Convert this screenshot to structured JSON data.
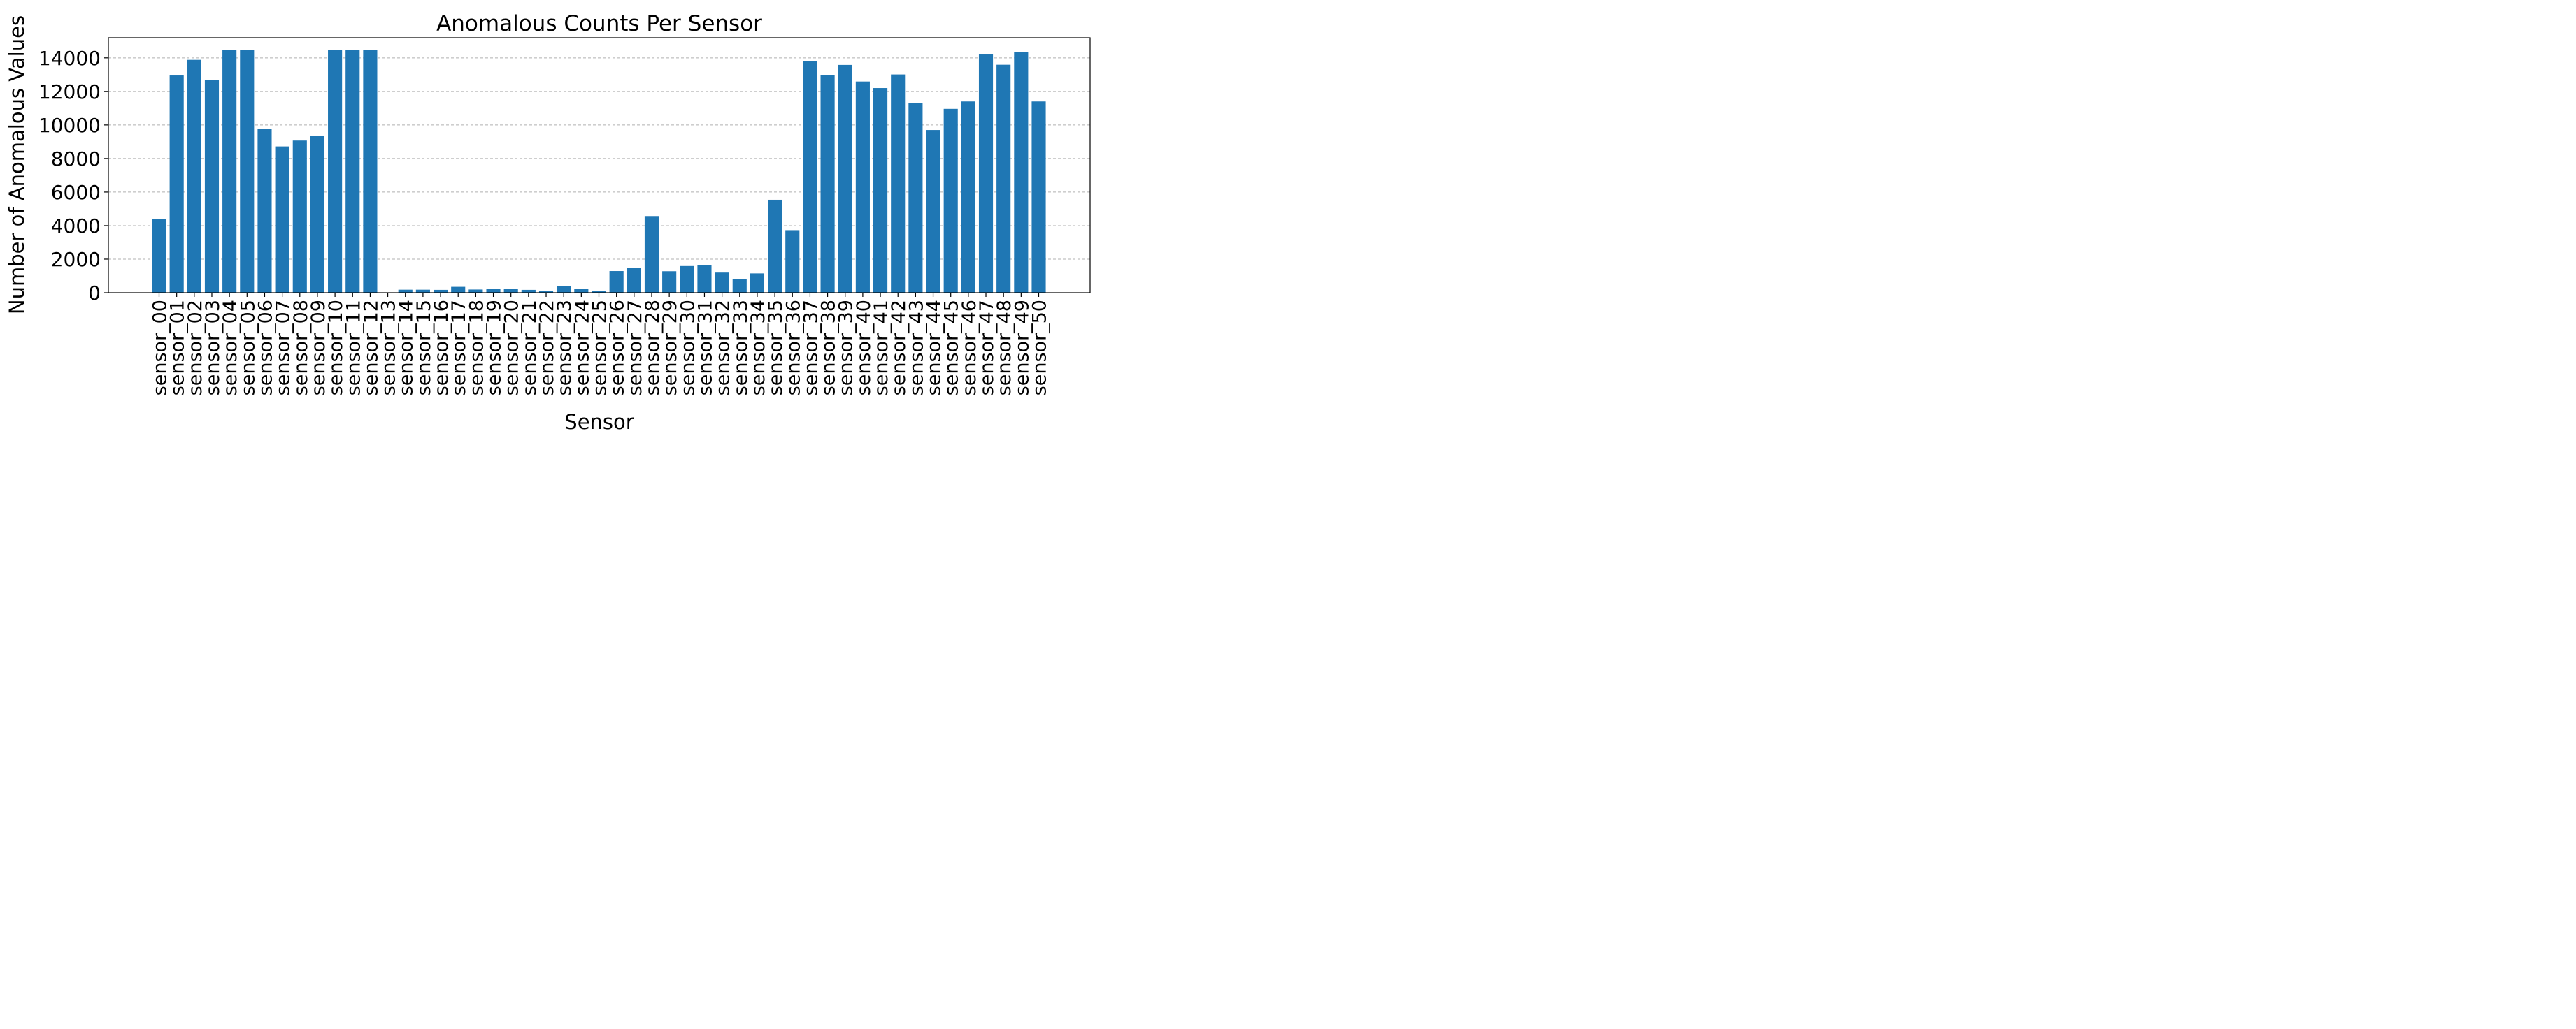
{
  "chart_data": {
    "type": "bar",
    "title": "Anomalous Counts Per Sensor",
    "xlabel": "Sensor",
    "ylabel": "Number of Anomalous Values",
    "categories": [
      "sensor_00",
      "sensor_01",
      "sensor_02",
      "sensor_03",
      "sensor_04",
      "sensor_05",
      "sensor_06",
      "sensor_07",
      "sensor_08",
      "sensor_09",
      "sensor_10",
      "sensor_11",
      "sensor_12",
      "sensor_13",
      "sensor_14",
      "sensor_15",
      "sensor_16",
      "sensor_17",
      "sensor_18",
      "sensor_19",
      "sensor_20",
      "sensor_21",
      "sensor_22",
      "sensor_23",
      "sensor_24",
      "sensor_25",
      "sensor_26",
      "sensor_27",
      "sensor_28",
      "sensor_29",
      "sensor_30",
      "sensor_31",
      "sensor_32",
      "sensor_33",
      "sensor_34",
      "sensor_35",
      "sensor_36",
      "sensor_37",
      "sensor_38",
      "sensor_39",
      "sensor_40",
      "sensor_41",
      "sensor_42",
      "sensor_43",
      "sensor_44",
      "sensor_45",
      "sensor_46",
      "sensor_47",
      "sensor_48",
      "sensor_49",
      "sensor_50"
    ],
    "values": [
      4380,
      12950,
      13880,
      12680,
      14480,
      14480,
      9780,
      8720,
      9070,
      9370,
      14480,
      14480,
      14480,
      0,
      180,
      180,
      170,
      350,
      190,
      220,
      210,
      170,
      120,
      390,
      230,
      120,
      1290,
      1460,
      4570,
      1280,
      1590,
      1660,
      1200,
      800,
      1150,
      5540,
      3730,
      13800,
      12980,
      13580,
      12590,
      12200,
      13010,
      11300,
      9700,
      10960,
      11400,
      14200,
      13590,
      14360,
      11400
    ],
    "ylim": [
      0,
      15200
    ],
    "yticks": [
      0,
      2000,
      4000,
      6000,
      8000,
      10000,
      12000,
      14000
    ],
    "grid": "y-dashed",
    "bar_color": "#1f77b4",
    "grid_color": "#b0b0b0"
  }
}
